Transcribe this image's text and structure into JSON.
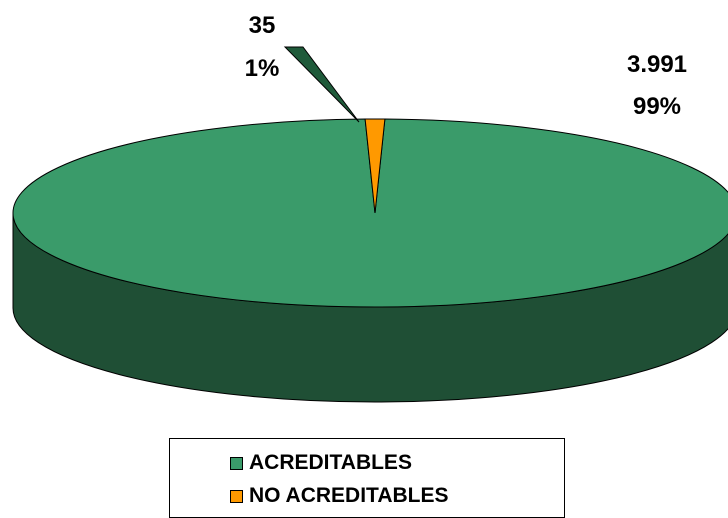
{
  "chart_data": {
    "type": "pie",
    "style": "3d-exploded",
    "slices": [
      {
        "name": "ACREDITABLES",
        "value": 3991,
        "value_label": "3.991",
        "percent_label": "99%",
        "color": "#3a9b6a",
        "side_color": "#1f4f35"
      },
      {
        "name": "NO ACREDITABLES",
        "value": 35,
        "value_label": "35",
        "percent_label": "1%",
        "color": "#ff9900",
        "side_color": "#1f5a3a"
      }
    ],
    "legend": {
      "placement": "bottom",
      "entries": [
        "ACREDITABLES",
        "NO ACREDITABLES"
      ]
    }
  }
}
